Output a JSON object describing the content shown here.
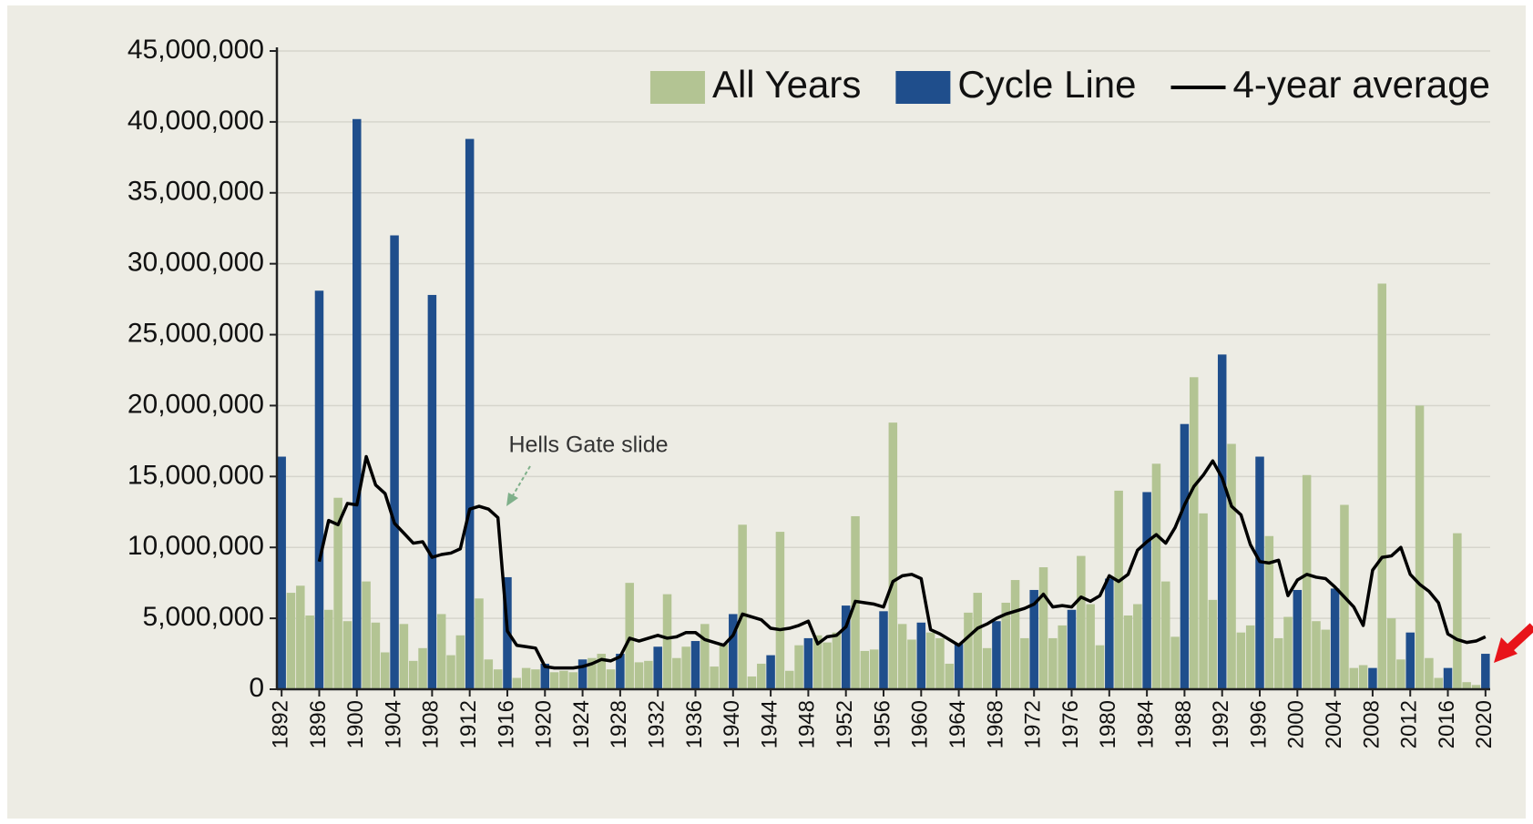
{
  "chart_data": {
    "type": "bar",
    "legend": "upper right",
    "grid": true,
    "annotations": [
      {
        "text": "Hells Gate slide"
      }
    ],
    "ylim": [
      0,
      45000000
    ],
    "yticks": [
      0,
      {
        "value": 5000000,
        "label": "5,000,000"
      },
      {
        "value": 10000000,
        "label": "10,000,000"
      },
      {
        "value": 15000000,
        "label": "15,000,000"
      },
      {
        "value": 20000000,
        "label": "20,000,000"
      },
      {
        "value": 25000000,
        "label": "25,000,000"
      },
      {
        "value": 30000000,
        "label": "30,000,000"
      },
      {
        "value": 35000000,
        "label": "35,000,000"
      },
      {
        "value": 40000000,
        "label": "40,000,000"
      },
      {
        "value": 45000000,
        "label": "45,000,000"
      }
    ],
    "categories": [
      "1892",
      null,
      null,
      null,
      "1896",
      null,
      null,
      null,
      "1900",
      null,
      null,
      null,
      "1904",
      null,
      null,
      null,
      "1908",
      null,
      null,
      null,
      "1912",
      null,
      null,
      null,
      "1916",
      null,
      null,
      null,
      "1920",
      null,
      null,
      null,
      "1924",
      null,
      null,
      null,
      "1928",
      null,
      null,
      null,
      "1932",
      null,
      null,
      null,
      "1936",
      null,
      null,
      null,
      "1940",
      null,
      null,
      null,
      "1944",
      null,
      null,
      null,
      "1948",
      null,
      null,
      null,
      "1952",
      null,
      null,
      null,
      "1956",
      null,
      null,
      null,
      "1960",
      null,
      null,
      null,
      "1964",
      null,
      null,
      null,
      "1968",
      null,
      null,
      null,
      "1972",
      null,
      null,
      null,
      "1976",
      null,
      null,
      null,
      "1980",
      null,
      null,
      null,
      "1984",
      null,
      null,
      null,
      "1988",
      null,
      null,
      null,
      "1992",
      null,
      null,
      null,
      "1996",
      null,
      null,
      null,
      "2000",
      null,
      null,
      null,
      "2004",
      null,
      null,
      null,
      "2008",
      null,
      null,
      null,
      "2012",
      null,
      null,
      null,
      "2016",
      null,
      null,
      null,
      "2020"
    ],
    "series": [
      {
        "name": "All Years",
        "type": "bar",
        "color": "#b3c493",
        "values": [
          null,
          6800000,
          7300000,
          5200000,
          null,
          5600000,
          13500000,
          4800000,
          null,
          7600000,
          4700000,
          2600000,
          null,
          4600000,
          2000000,
          2900000,
          null,
          5300000,
          2400000,
          3800000,
          null,
          6400000,
          2100000,
          1400000,
          null,
          800000,
          1500000,
          1400000,
          null,
          1200000,
          1300000,
          1200000,
          null,
          2200000,
          2500000,
          1400000,
          null,
          7500000,
          1900000,
          2000000,
          null,
          6700000,
          2200000,
          3000000,
          null,
          4600000,
          1600000,
          3200000,
          null,
          11600000,
          900000,
          1800000,
          null,
          11100000,
          1300000,
          3100000,
          null,
          3800000,
          3300000,
          4000000,
          null,
          12200000,
          2700000,
          2800000,
          null,
          18800000,
          4600000,
          3500000,
          null,
          4000000,
          3600000,
          1800000,
          null,
          5400000,
          6800000,
          2900000,
          null,
          6100000,
          7700000,
          3600000,
          null,
          8600000,
          3600000,
          4500000,
          null,
          9400000,
          6000000,
          3100000,
          null,
          14000000,
          5200000,
          6000000,
          null,
          15900000,
          7600000,
          3700000,
          null,
          22000000,
          12400000,
          6300000,
          null,
          17300000,
          4000000,
          4500000,
          null,
          10800000,
          3600000,
          5100000,
          null,
          15100000,
          4800000,
          4200000,
          null,
          13000000,
          1500000,
          1700000,
          null,
          28600000,
          5000000,
          2100000,
          null,
          20000000,
          2200000,
          800000,
          null,
          11000000,
          500000,
          300000,
          null
        ]
      },
      {
        "name": "Cycle Line",
        "type": "bar",
        "color": "#1f4e8c",
        "values": [
          16400000,
          null,
          null,
          null,
          28100000,
          null,
          null,
          null,
          40200000,
          null,
          null,
          null,
          32000000,
          null,
          null,
          null,
          27800000,
          null,
          null,
          null,
          38800000,
          null,
          null,
          null,
          7900000,
          null,
          null,
          null,
          1800000,
          null,
          null,
          null,
          2100000,
          null,
          null,
          null,
          2500000,
          null,
          null,
          null,
          3000000,
          null,
          null,
          null,
          3400000,
          null,
          null,
          null,
          5300000,
          null,
          null,
          null,
          2400000,
          null,
          null,
          null,
          3600000,
          null,
          null,
          null,
          5900000,
          null,
          null,
          null,
          5500000,
          null,
          null,
          null,
          4700000,
          null,
          null,
          null,
          3200000,
          null,
          null,
          null,
          4800000,
          null,
          null,
          null,
          7000000,
          null,
          null,
          null,
          5600000,
          null,
          null,
          null,
          7800000,
          null,
          null,
          null,
          13900000,
          null,
          null,
          null,
          18700000,
          null,
          null,
          null,
          23600000,
          null,
          null,
          null,
          16400000,
          null,
          null,
          null,
          7000000,
          null,
          null,
          null,
          7100000,
          null,
          null,
          null,
          1500000,
          null,
          null,
          null,
          4000000,
          null,
          null,
          null,
          1500000,
          null,
          null,
          null,
          2500000
        ]
      },
      {
        "name": "4-year average",
        "type": "line",
        "color": "#000000",
        "values": [
          null,
          null,
          null,
          null,
          9000000,
          11900000,
          11600000,
          13100000,
          13000000,
          16400000,
          14400000,
          13800000,
          11700000,
          11000000,
          10300000,
          10400000,
          9300000,
          9500000,
          9600000,
          9900000,
          12700000,
          12900000,
          12700000,
          12100000,
          4100000,
          3100000,
          3000000,
          2900000,
          1600000,
          1500000,
          1500000,
          1500000,
          1600000,
          1800000,
          2100000,
          2000000,
          2300000,
          3600000,
          3400000,
          3600000,
          3800000,
          3600000,
          3700000,
          4000000,
          4000000,
          3500000,
          3300000,
          3100000,
          3800000,
          5300000,
          5100000,
          4900000,
          4300000,
          4200000,
          4300000,
          4500000,
          4800000,
          3200000,
          3700000,
          3800000,
          4400000,
          6200000,
          6100000,
          6000000,
          5800000,
          7600000,
          8000000,
          8100000,
          7800000,
          4200000,
          3900000,
          3500000,
          3100000,
          3700000,
          4300000,
          4600000,
          5000000,
          5300000,
          5500000,
          5700000,
          6000000,
          6700000,
          5800000,
          5900000,
          5800000,
          6500000,
          6200000,
          6600000,
          8000000,
          7600000,
          8100000,
          9800000,
          10400000,
          10900000,
          10300000,
          11400000,
          13000000,
          14300000,
          15100000,
          16100000,
          14900000,
          12900000,
          12300000,
          10200000,
          9000000,
          8900000,
          9100000,
          6600000,
          7700000,
          8100000,
          7900000,
          7800000,
          7200000,
          6500000,
          5800000,
          4500000,
          8400000,
          9300000,
          9400000,
          10000000,
          8100000,
          7400000,
          6900000,
          6100000,
          3900000,
          3500000,
          3300000,
          3400000,
          3700000
        ]
      }
    ]
  }
}
